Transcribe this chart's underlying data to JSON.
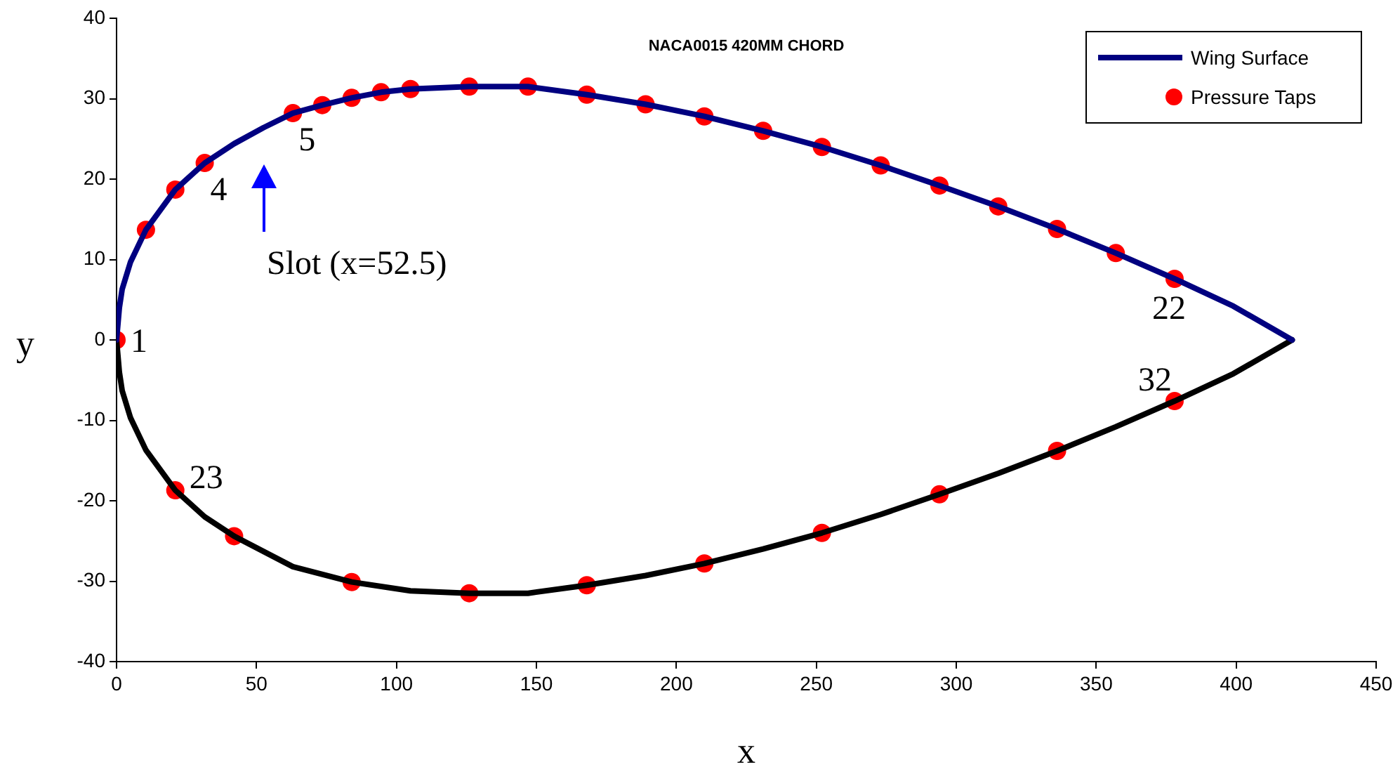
{
  "chart_data": {
    "type": "scatter",
    "title": "NACA0015 420MM CHORD",
    "xlabel": "x",
    "ylabel": "y",
    "xlim": [
      0,
      450
    ],
    "xticks": [
      0,
      50,
      100,
      150,
      200,
      250,
      300,
      350,
      400,
      450
    ],
    "ylim": [
      -40,
      40
    ],
    "yticks": [
      -40,
      -30,
      -20,
      -10,
      0,
      10,
      20,
      30,
      40
    ],
    "grid": false,
    "legend": "top right",
    "series": [
      {
        "name": "Wing Surface",
        "type": "line",
        "marker": "none",
        "color": "#000080",
        "x": [
          0,
          1,
          2,
          5,
          10.5,
          21,
          31.5,
          42,
          52.5,
          63,
          73.5,
          84,
          94.5,
          105,
          126,
          147,
          168,
          189,
          210,
          231,
          252,
          273,
          294,
          315,
          336,
          357,
          378,
          399,
          420
        ],
        "values": [
          0,
          4,
          6.3,
          9.7,
          13.7,
          18.7,
          22,
          24.4,
          26.4,
          28.2,
          29.2,
          30.1,
          30.8,
          31.2,
          31.5,
          31.5,
          30.5,
          29.3,
          27.8,
          26,
          24,
          21.7,
          19.2,
          16.6,
          13.8,
          10.8,
          7.6,
          4.2,
          0
        ]
      },
      {
        "type": "line",
        "marker": "none",
        "color": "#000000",
        "x": [
          0,
          1,
          2,
          5,
          10.5,
          21,
          31.5,
          42,
          63,
          84,
          105,
          126,
          147,
          168,
          189,
          210,
          231,
          252,
          273,
          294,
          315,
          336,
          357,
          378,
          399,
          420
        ],
        "values": [
          0,
          -4,
          -6.3,
          -9.7,
          -13.7,
          -18.7,
          -22,
          -24.4,
          -28.2,
          -30.1,
          -31.2,
          -31.5,
          -31.5,
          -30.5,
          -29.3,
          -27.8,
          -26,
          -24,
          -21.7,
          -19.2,
          -16.6,
          -13.8,
          -10.8,
          -7.6,
          -4.2,
          0
        ]
      },
      {
        "name": "Pressure Taps",
        "type": "scatter",
        "marker": "circle",
        "color": "#ff0000",
        "x": [
          0,
          10.5,
          21,
          31.5,
          63,
          73.5,
          84,
          94.5,
          105,
          126,
          147,
          168,
          189,
          210,
          231,
          252,
          273,
          294,
          315,
          336,
          357,
          378,
          21,
          42,
          84,
          126,
          168,
          210,
          252,
          294,
          336,
          378
        ],
        "values": [
          0,
          13.7,
          18.7,
          22,
          28.2,
          29.2,
          30.1,
          30.8,
          31.2,
          31.5,
          31.5,
          30.5,
          29.3,
          27.8,
          26,
          24,
          21.7,
          19.2,
          16.6,
          13.8,
          10.8,
          7.6,
          -18.7,
          -24.4,
          -30.1,
          -31.5,
          -30.5,
          -27.8,
          -24,
          -19.2,
          -13.8,
          -7.6
        ]
      }
    ],
    "annotations": [
      {
        "text": "1",
        "x": 0,
        "y": 0
      },
      {
        "text": "4",
        "x": 31.5,
        "y": 22
      },
      {
        "text": "5",
        "x": 63,
        "y": 28.2
      },
      {
        "text": "22",
        "x": 378,
        "y": 7.6
      },
      {
        "text": "23",
        "x": 21,
        "y": -18.7
      },
      {
        "text": "32",
        "x": 378,
        "y": -7.6
      },
      "Slot (x=52.5)"
    ]
  }
}
